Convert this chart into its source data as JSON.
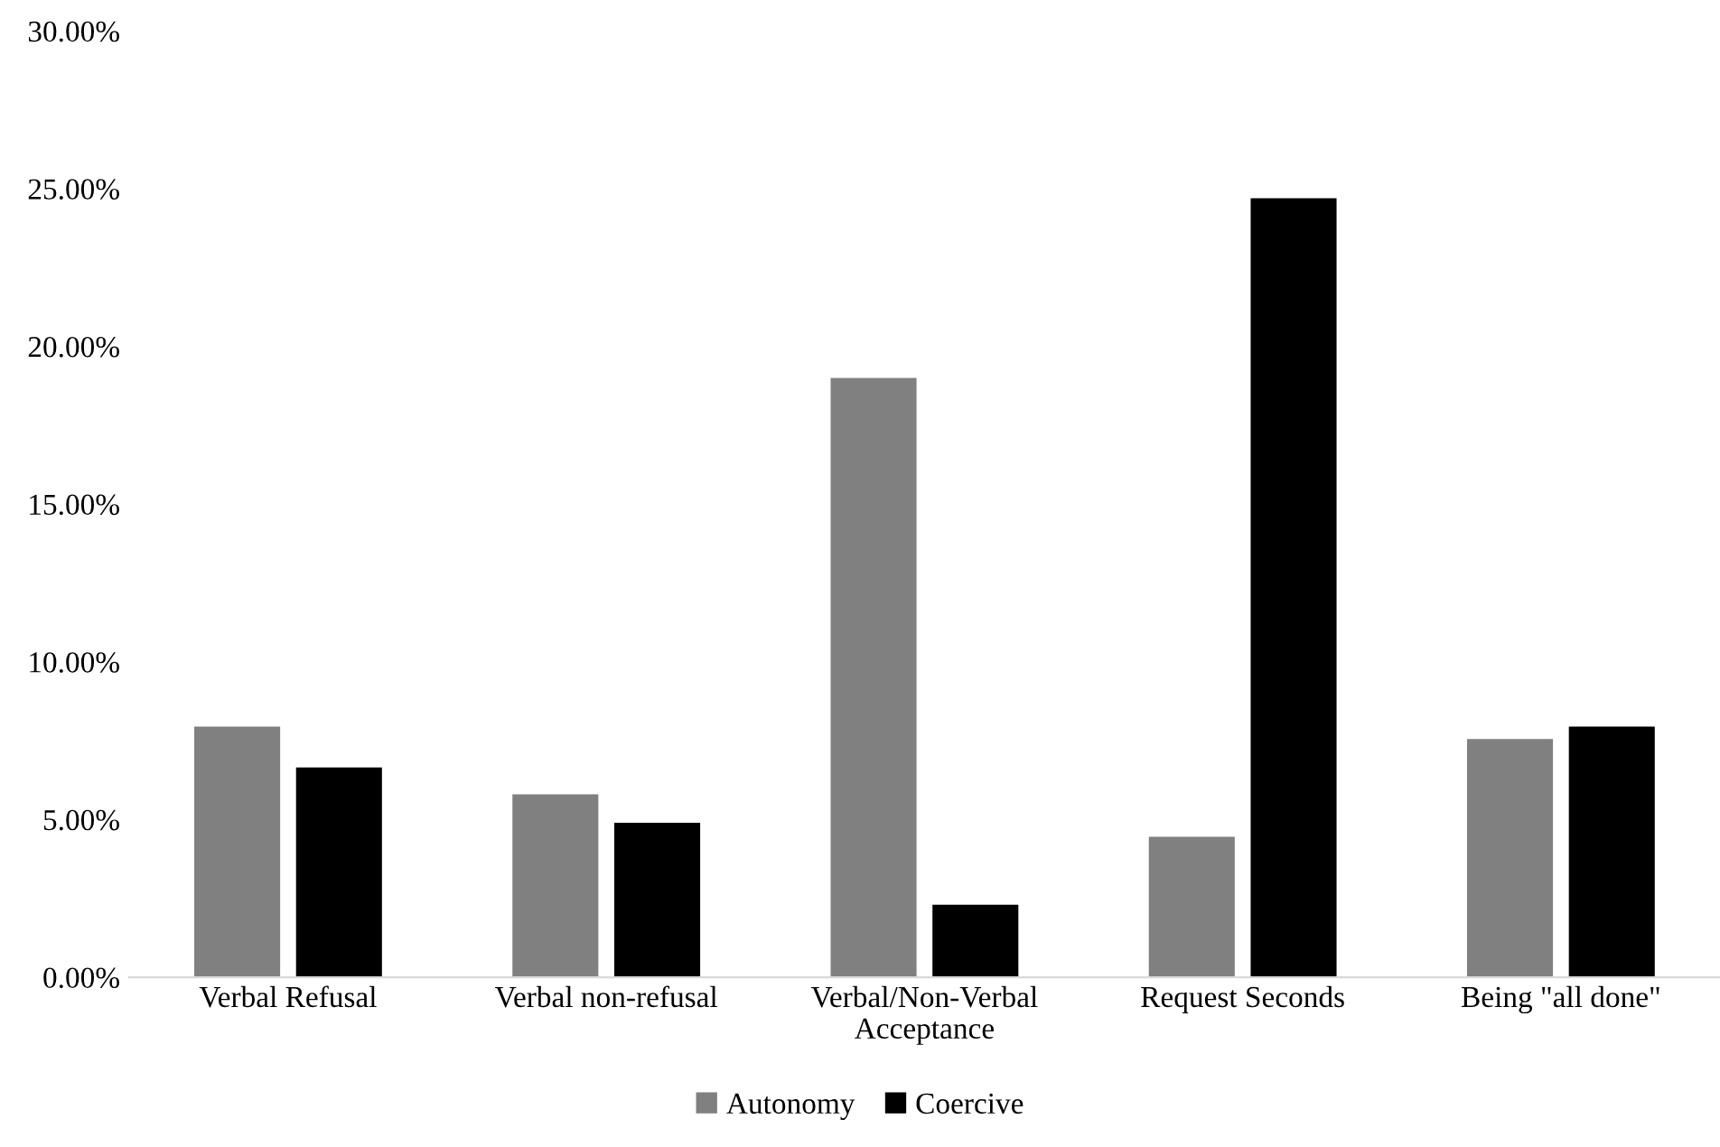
{
  "chart_data": {
    "type": "bar",
    "categories": [
      "Verbal Refusal",
      "Verbal non-refusal",
      "Verbal/Non-Verbal\nAcceptance",
      "Request Seconds",
      "Being \"all done\""
    ],
    "series": [
      {
        "name": "Autonomy",
        "color": "#808080",
        "values": [
          7.95,
          5.8,
          19.0,
          4.45,
          7.55
        ]
      },
      {
        "name": "Coercive",
        "color": "#000000",
        "values": [
          6.65,
          4.9,
          2.3,
          24.7,
          7.95
        ]
      }
    ],
    "ylim": [
      0,
      30
    ],
    "yticks": [
      {
        "value": 0,
        "label": "0.00%"
      },
      {
        "value": 5,
        "label": "5.00%"
      },
      {
        "value": 10,
        "label": "10.00%"
      },
      {
        "value": 15,
        "label": "15.00%"
      },
      {
        "value": 20,
        "label": "20.00%"
      },
      {
        "value": 25,
        "label": "25.00%"
      },
      {
        "value": 30,
        "label": "30.00%"
      }
    ],
    "grid": false,
    "legend": "bottom"
  }
}
